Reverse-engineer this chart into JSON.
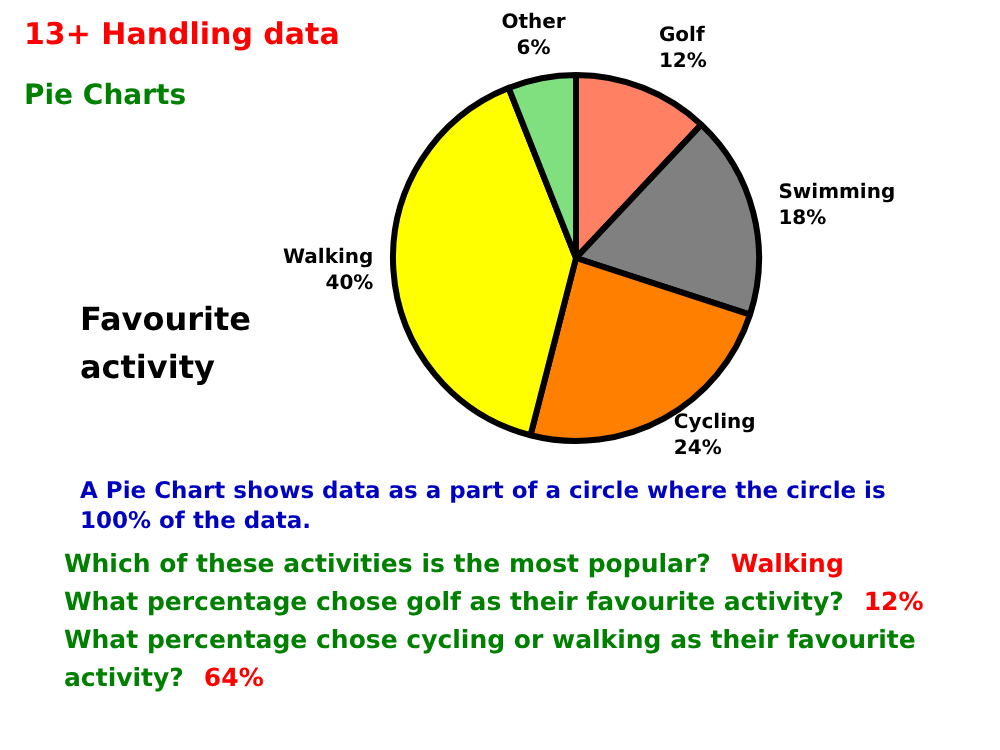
{
  "chart_data": {
    "type": "pie",
    "title": "13+ Handling data",
    "subtitle": "Pie Charts",
    "categories": [
      "Golf",
      "Swimming",
      "Cycling",
      "Walking",
      "Other"
    ],
    "values": [
      12,
      18,
      24,
      40,
      6
    ],
    "colors": [
      "#ff8062",
      "#808080",
      "#ff8000",
      "#ffff00",
      "#80e080"
    ],
    "value_labels": [
      "12%",
      "18%",
      "24%",
      "40%",
      "6%"
    ],
    "legend": false,
    "annotations": [
      "Favourite activity",
      "A Pie Chart shows data as a part of a circle where the circle is 100% of the data.",
      "Which of these activities is the most popular?",
      "Walking",
      "What percentage chose golf as their favourite activity?",
      "12%",
      "What percentage chose cycling or walking as their favourite activity?",
      "64%"
    ]
  }
}
